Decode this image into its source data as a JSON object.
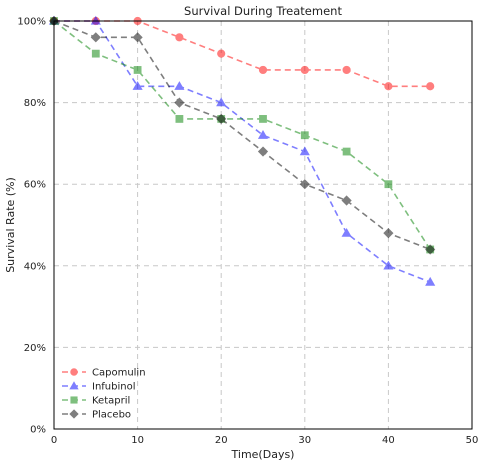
{
  "chart_data": {
    "type": "line",
    "title": "Survival During Treatement",
    "xlabel": "Time(Days)",
    "ylabel": "Survival Rate (%)",
    "xlim": [
      0,
      50
    ],
    "ylim": [
      0,
      100
    ],
    "x_ticks": [
      0,
      10,
      20,
      30,
      40,
      50
    ],
    "y_ticks": [
      0,
      20,
      40,
      60,
      80,
      100
    ],
    "y_tick_suffix": "%",
    "grid": true,
    "grid_style": "dashed",
    "legend_position": "lower-left",
    "x": [
      0,
      5,
      10,
      15,
      20,
      25,
      30,
      35,
      40,
      45
    ],
    "series": [
      {
        "name": "Capomulin",
        "color": "#ff0000",
        "marker": "circle",
        "values": [
          100,
          100,
          100,
          96,
          92,
          88,
          88,
          88,
          84,
          84
        ]
      },
      {
        "name": "Infubinol",
        "color": "#0000ff",
        "marker": "triangle",
        "values": [
          100,
          100,
          84,
          84,
          80,
          72,
          68,
          48,
          40,
          36
        ]
      },
      {
        "name": "Ketapril",
        "color": "#008000",
        "marker": "square",
        "values": [
          100,
          92,
          88,
          76,
          76,
          76,
          72,
          68,
          60,
          44
        ]
      },
      {
        "name": "Placebo",
        "color": "#000000",
        "marker": "diamond",
        "values": [
          100,
          96,
          96,
          80,
          76,
          68,
          60,
          56,
          48,
          44
        ]
      }
    ]
  }
}
